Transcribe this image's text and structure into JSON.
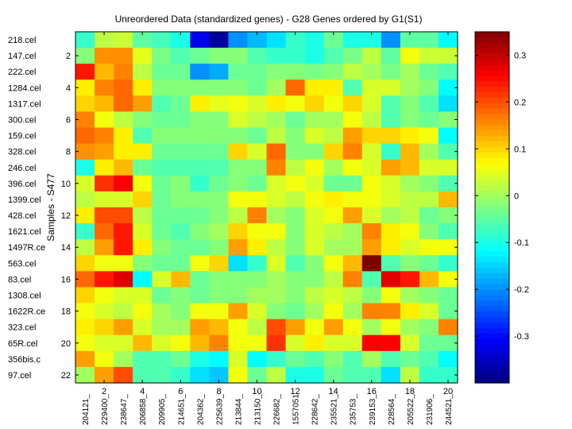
{
  "chart_data": {
    "type": "heatmap",
    "title": "Unreordered Data (standardized genes) - G28 Genes ordered by G1(S1)",
    "ylabel": "Samples - S477",
    "xlabel": "",
    "x_ticks": [
      "2",
      "4",
      "6",
      "8",
      "10",
      "12",
      "14",
      "16",
      "18",
      "20"
    ],
    "y_ticks": [
      "2",
      "4",
      "6",
      "8",
      "10",
      "12",
      "14",
      "16",
      "18",
      "20",
      "22"
    ],
    "row_labels": [
      "218.cel",
      "147.cel",
      "222.cel",
      "1284.cel",
      "1317.cel",
      "300.cel",
      "159.cel",
      "328.cel",
      "246.cel",
      "396.cel",
      "1399.cel",
      "428.cel",
      "1621.cel",
      "1497R.ce",
      "563.cel",
      "83.cel",
      "1308.cel",
      "1622R.ce",
      "323.cel",
      "65R.cel",
      "356bis.c",
      "97.cel"
    ],
    "col_labels": [
      "204121_",
      "229400_",
      "238647_",
      "206858_",
      "209905_",
      "214651_",
      "204362_",
      "225639_",
      "213844_",
      "213150_",
      "226682_",
      "1557051",
      "228642_",
      "235521_",
      "235753_",
      "239153_",
      "228564_",
      "205522_",
      "231906_",
      "244521_"
    ],
    "colorbar": {
      "colormap": "jet",
      "range": [
        -0.4,
        0.35
      ],
      "ticks": [
        -0.3,
        -0.2,
        -0.1,
        0,
        0.1,
        0.2,
        0.3
      ]
    },
    "values": [
      [
        -0.08,
        0.02,
        0.03,
        -0.05,
        -0.07,
        -0.1,
        -0.32,
        -0.38,
        -0.2,
        -0.17,
        -0.14,
        -0.08,
        -0.1,
        -0.04,
        -0.1,
        -0.1,
        -0.2,
        -0.05,
        -0.05,
        -0.12
      ],
      [
        -0.02,
        0.15,
        0.15,
        0.05,
        -0.03,
        -0.06,
        -0.04,
        -0.02,
        -0.02,
        -0.06,
        -0.08,
        -0.08,
        -0.1,
        -0.06,
        -0.03,
        0.02,
        -0.05,
        0.06,
        0.03,
        0.03
      ],
      [
        0.24,
        0.12,
        0.16,
        0.02,
        -0.04,
        -0.04,
        -0.2,
        -0.18,
        -0.04,
        -0.04,
        -0.02,
        -0.02,
        -0.03,
        -0.02,
        0.02,
        0.0,
        -0.03,
        0.0,
        -0.04,
        -0.06
      ],
      [
        0.08,
        0.16,
        0.18,
        0.08,
        -0.02,
        -0.02,
        -0.02,
        -0.02,
        -0.02,
        -0.04,
        0.0,
        0.18,
        0.08,
        0.08,
        -0.06,
        0.04,
        0.04,
        0.0,
        -0.02,
        -0.12
      ],
      [
        0.1,
        0.12,
        0.18,
        0.14,
        -0.06,
        -0.04,
        0.08,
        0.05,
        0.06,
        0.04,
        0.08,
        0.06,
        0.1,
        0.06,
        0.1,
        0.04,
        -0.06,
        -0.02,
        -0.06,
        -0.14
      ],
      [
        0.16,
        0.06,
        0.02,
        -0.02,
        -0.04,
        -0.04,
        -0.02,
        -0.02,
        0.04,
        0.02,
        0.0,
        -0.04,
        0.0,
        0.0,
        0.06,
        0.02,
        -0.06,
        -0.02,
        -0.04,
        -0.02
      ],
      [
        0.18,
        0.16,
        0.08,
        -0.06,
        -0.02,
        -0.02,
        -0.02,
        -0.02,
        -0.02,
        -0.04,
        0.02,
        -0.02,
        0.04,
        0.02,
        0.14,
        0.1,
        0.1,
        0.08,
        0.06,
        -0.12
      ],
      [
        0.15,
        0.14,
        0.08,
        0.08,
        -0.04,
        -0.04,
        -0.04,
        -0.04,
        0.1,
        0.04,
        0.18,
        -0.02,
        -0.02,
        0.1,
        0.16,
        0.04,
        -0.08,
        0.12,
        0.0,
        -0.06
      ],
      [
        -0.1,
        0.08,
        0.12,
        -0.04,
        -0.06,
        -0.06,
        -0.06,
        -0.06,
        -0.02,
        -0.02,
        0.16,
        0.02,
        0.06,
        0.0,
        0.06,
        0.04,
        0.14,
        0.12,
        0.04,
        0.04
      ],
      [
        0.04,
        0.22,
        0.26,
        0.06,
        -0.04,
        -0.02,
        -0.08,
        -0.04,
        -0.02,
        -0.04,
        0.04,
        0.06,
        0.04,
        -0.04,
        -0.04,
        0.06,
        0.04,
        0.0,
        -0.02,
        -0.06
      ],
      [
        0.02,
        0.04,
        0.04,
        0.1,
        -0.04,
        -0.02,
        -0.02,
        -0.02,
        0.06,
        0.06,
        0.04,
        0.02,
        0.06,
        0.08,
        0.06,
        0.06,
        0.04,
        0.02,
        0.02,
        0.12
      ],
      [
        0.08,
        0.2,
        0.2,
        0.02,
        -0.04,
        -0.04,
        -0.04,
        -0.02,
        0.02,
        0.16,
        0.0,
        -0.02,
        0.04,
        0.06,
        0.14,
        0.04,
        0.0,
        0.02,
        -0.04,
        -0.02
      ],
      [
        -0.08,
        0.18,
        0.24,
        0.04,
        -0.04,
        -0.06,
        -0.02,
        0.0,
        0.1,
        0.06,
        0.06,
        -0.02,
        0.04,
        0.02,
        0.0,
        0.16,
        0.08,
        0.06,
        -0.02,
        -0.06
      ],
      [
        0.02,
        0.14,
        0.24,
        0.08,
        -0.02,
        -0.04,
        -0.04,
        -0.02,
        0.14,
        0.08,
        0.02,
        -0.02,
        0.04,
        0.0,
        0.0,
        0.14,
        0.08,
        0.04,
        0.06,
        0.06
      ],
      [
        0.1,
        0.06,
        0.06,
        -0.02,
        -0.04,
        -0.04,
        0.06,
        0.1,
        -0.14,
        -0.08,
        0.04,
        -0.06,
        -0.02,
        0.06,
        0.12,
        0.36,
        -0.06,
        -0.02,
        -0.04,
        -0.08
      ],
      [
        0.18,
        0.24,
        0.28,
        -0.12,
        0.04,
        0.12,
        -0.04,
        -0.02,
        -0.02,
        -0.02,
        0.0,
        -0.02,
        -0.02,
        0.02,
        0.16,
        -0.06,
        0.28,
        0.24,
        0.12,
        0.06
      ],
      [
        0.1,
        0.06,
        0.04,
        0.04,
        -0.04,
        -0.02,
        -0.04,
        -0.02,
        -0.02,
        0.0,
        0.0,
        -0.02,
        0.02,
        0.04,
        0.02,
        -0.02,
        0.06,
        0.0,
        -0.02,
        -0.04
      ],
      [
        0.06,
        0.04,
        0.02,
        0.06,
        0.0,
        -0.02,
        0.06,
        0.06,
        0.14,
        0.04,
        -0.02,
        -0.04,
        0.0,
        0.06,
        0.0,
        0.16,
        0.16,
        0.08,
        0.04,
        -0.04
      ],
      [
        0.08,
        0.1,
        0.14,
        0.04,
        0.0,
        0.0,
        0.14,
        0.12,
        0.06,
        0.02,
        0.2,
        0.14,
        0.06,
        0.14,
        0.06,
        0.0,
        0.06,
        0.0,
        -0.02,
        0.16
      ],
      [
        0.06,
        0.04,
        0.04,
        0.12,
        0.04,
        0.06,
        0.12,
        0.16,
        0.06,
        0.06,
        0.22,
        0.04,
        0.08,
        0.04,
        0.04,
        0.26,
        0.26,
        0.04,
        -0.04,
        -0.04
      ],
      [
        0.14,
        0.06,
        0.0,
        -0.06,
        -0.06,
        -0.04,
        -0.1,
        -0.12,
        0.04,
        -0.12,
        -0.08,
        -0.04,
        -0.06,
        -0.02,
        -0.06,
        0.0,
        -0.06,
        -0.04,
        -0.06,
        -0.12
      ],
      [
        0.0,
        0.14,
        0.2,
        -0.06,
        -0.06,
        -0.08,
        -0.14,
        -0.16,
        0.06,
        -0.04,
        0.02,
        -0.1,
        -0.1,
        -0.04,
        -0.06,
        -0.06,
        -0.14,
        0.02,
        -0.08,
        -0.08
      ]
    ]
  }
}
